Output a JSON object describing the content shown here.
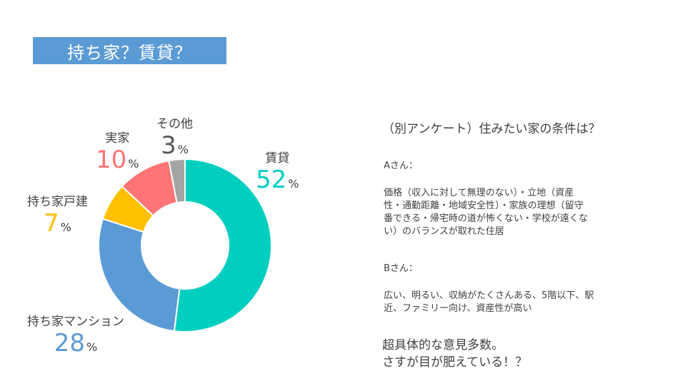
{
  "slide": {
    "title": "持ち家？賃貸？"
  },
  "chart_data": {
    "type": "pie",
    "donut": true,
    "unit": "%",
    "slices": [
      {
        "name": "賃貸",
        "value": 52,
        "color": "#00cfc0"
      },
      {
        "name": "持ち家マンション",
        "value": 28,
        "color": "#5b9bd5"
      },
      {
        "name": "持ち家戸建",
        "value": 7,
        "color": "#ffc000"
      },
      {
        "name": "実家",
        "value": 10,
        "color": "#ff7575"
      },
      {
        "name": "その他",
        "value": 3,
        "color": "#a5a5a5"
      }
    ]
  },
  "survey": {
    "heading": "（別アンケート）住みたい家の条件は？",
    "responses": [
      {
        "name": "Aさん：",
        "text": "価格（収入に対して無理のない）・立地（資産\n性・通勤距離・地域安全性）・家族の理想（留守\n番できる・帰宅時の道が怖くない・学校が遠くな\nい）のバランスが取れた住居"
      },
      {
        "name": "Bさん：",
        "text": "広い、明るい、収納がたくさんある、5階以下、駅\n近、ファミリー向け、資産性が高い"
      }
    ],
    "conclusion": "超具体的な意見多数。\nさすが目が肥えている！？"
  }
}
